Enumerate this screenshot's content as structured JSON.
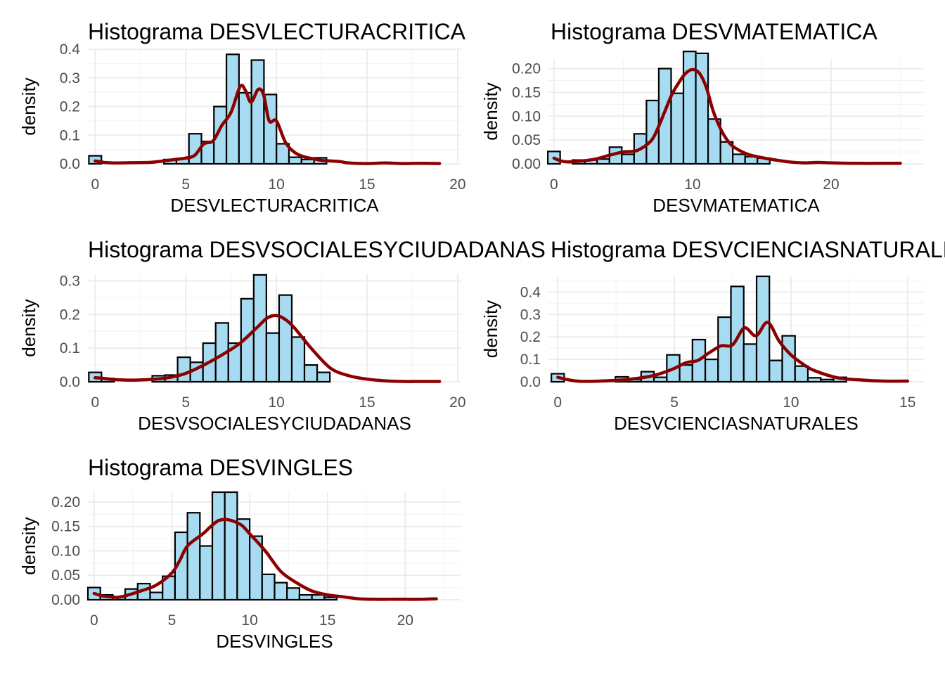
{
  "chart_data": [
    {
      "type": "bar",
      "title": "Histograma DESVLECTURACRITICA",
      "xlabel": "DESVLECTURACRITICA",
      "ylabel": "density",
      "xlim": [
        -0.4,
        20.2
      ],
      "ylim": [
        0,
        0.4
      ],
      "xticks": [
        0,
        5,
        10,
        15,
        20
      ],
      "xtick_labels": [
        "0",
        "5",
        "10",
        "15",
        "20"
      ],
      "yticks": [
        0,
        0.1,
        0.2,
        0.3,
        0.4
      ],
      "ytick_labels": [
        "0.0",
        "0.1",
        "0.2",
        "0.3",
        "0.4"
      ],
      "bin_width": 0.69,
      "bins": {
        "x": [
          0,
          0.69,
          1.38,
          2.07,
          2.76,
          3.45,
          4.14,
          4.83,
          5.52,
          6.21,
          6.9,
          7.59,
          8.28,
          8.97,
          9.66,
          10.35,
          11.04,
          11.73,
          12.42,
          13.11,
          13.8,
          14.49,
          15.18,
          15.87,
          16.56,
          17.25,
          17.94,
          18.63,
          19.32
        ],
        "y": [
          0.028,
          0,
          0,
          0,
          0,
          0,
          0.015,
          0.018,
          0.105,
          0.078,
          0.2,
          0.382,
          0.248,
          0.362,
          0.242,
          0.07,
          0.023,
          0.015,
          0.021,
          0,
          0,
          0,
          0,
          0,
          0,
          0,
          0,
          0,
          0
        ]
      },
      "density": {
        "x": [
          0,
          0.5,
          1,
          2,
          3,
          3.5,
          4,
          4.5,
          5,
          5.5,
          6,
          6.5,
          7,
          7.5,
          8,
          8.3,
          8.6,
          9,
          9.3,
          9.6,
          10,
          10.5,
          11,
          11.5,
          12,
          12.5,
          13,
          13.5,
          14,
          15,
          16,
          17,
          18,
          19
        ],
        "y": [
          0.01,
          0.005,
          0.003,
          0.004,
          0.005,
          0.008,
          0.012,
          0.016,
          0.02,
          0.03,
          0.07,
          0.08,
          0.135,
          0.18,
          0.27,
          0.255,
          0.215,
          0.26,
          0.24,
          0.15,
          0.15,
          0.075,
          0.04,
          0.025,
          0.018,
          0.012,
          0.01,
          0.008,
          0.003,
          0.001,
          0.003,
          0.001,
          0.002,
          0.001
        ]
      }
    },
    {
      "type": "bar",
      "title": "Histograma DESVMATEMATICA",
      "xlabel": "DESVMATEMATICA",
      "ylabel": "density",
      "xlim": [
        -0.4,
        26.7
      ],
      "ylim": [
        0,
        0.22
      ],
      "xticks": [
        0,
        10,
        20
      ],
      "xtick_labels": [
        "0",
        "10",
        "20"
      ],
      "yticks": [
        0,
        0.05,
        0.1,
        0.15,
        0.2
      ],
      "ytick_labels": [
        "0.00",
        "0.05",
        "0.10",
        "0.15",
        "0.20"
      ],
      "bin_width": 0.89,
      "bins": {
        "x": [
          0,
          0.89,
          1.78,
          2.67,
          3.56,
          4.45,
          5.34,
          6.23,
          7.12,
          8.01,
          8.9,
          9.79,
          10.68,
          11.57,
          12.46,
          13.35,
          14.24,
          15.13,
          16.02,
          16.91,
          17.8,
          18.69,
          19.58,
          20.47,
          21.36,
          22.25,
          23.14,
          24.03
        ],
        "y": [
          0.026,
          0,
          0.008,
          0.008,
          0.01,
          0.035,
          0.02,
          0.063,
          0.133,
          0.2,
          0.148,
          0.236,
          0.232,
          0.094,
          0.046,
          0.02,
          0.015,
          0.012,
          0,
          0,
          0,
          0,
          0,
          0,
          0,
          0,
          0,
          0
        ]
      },
      "density": {
        "x": [
          0,
          0.5,
          1,
          2,
          3,
          4,
          5,
          6,
          7,
          7.5,
          8,
          8.5,
          9,
          9.5,
          10,
          10.5,
          11,
          11.5,
          12,
          12.5,
          13,
          14,
          15,
          16,
          17,
          18,
          19,
          20,
          22,
          24,
          25
        ],
        "y": [
          0.012,
          0.006,
          0.004,
          0.006,
          0.01,
          0.018,
          0.025,
          0.028,
          0.048,
          0.075,
          0.11,
          0.145,
          0.17,
          0.19,
          0.198,
          0.19,
          0.16,
          0.11,
          0.075,
          0.05,
          0.035,
          0.02,
          0.013,
          0.008,
          0.004,
          0.002,
          0.003,
          0.002,
          0.001,
          0.001,
          0.001
        ]
      }
    },
    {
      "type": "bar",
      "title": "Histograma DESVSOCIALESYCIUDADANAS",
      "xlabel": "DESVSOCIALESYCIUDADANAS",
      "ylabel": "density",
      "xlim": [
        -0.4,
        20.2
      ],
      "ylim": [
        0,
        0.32
      ],
      "xticks": [
        0,
        5,
        10,
        15,
        20
      ],
      "xtick_labels": [
        "0",
        "5",
        "10",
        "15",
        "20"
      ],
      "yticks": [
        0,
        0.1,
        0.2,
        0.3
      ],
      "ytick_labels": [
        "0.0",
        "0.1",
        "0.2",
        "0.3"
      ],
      "bin_width": 0.7,
      "bins": {
        "x": [
          0,
          0.7,
          1.4,
          2.1,
          2.8,
          3.5,
          4.2,
          4.9,
          5.6,
          6.3,
          7.0,
          7.7,
          8.4,
          9.1,
          9.8,
          10.5,
          11.2,
          11.9,
          12.6,
          13.3,
          14.0,
          14.7,
          15.4,
          16.1,
          16.8,
          17.5,
          18.2,
          18.9
        ],
        "y": [
          0.028,
          0.01,
          0,
          0,
          0,
          0.018,
          0.02,
          0.073,
          0.058,
          0.115,
          0.175,
          0.115,
          0.247,
          0.318,
          0.145,
          0.258,
          0.133,
          0.05,
          0.028,
          0,
          0,
          0,
          0,
          0,
          0,
          0,
          0,
          0
        ]
      },
      "density": {
        "x": [
          0,
          0.5,
          1,
          2,
          3,
          4,
          5,
          6,
          7,
          8,
          9,
          9.5,
          10,
          10.5,
          11,
          12,
          13,
          14,
          15,
          16,
          17,
          18,
          19
        ],
        "y": [
          0.012,
          0.01,
          0.007,
          0.005,
          0.007,
          0.012,
          0.025,
          0.05,
          0.08,
          0.115,
          0.165,
          0.19,
          0.197,
          0.185,
          0.16,
          0.095,
          0.04,
          0.018,
          0.008,
          0.003,
          0.001,
          0.001,
          0.001
        ]
      }
    },
    {
      "type": "bar",
      "title": "Histograma DESVCIENCIASNATURALES",
      "xlabel": "DESVCIENCIASNATURALES",
      "ylabel": "density",
      "xlim": [
        -0.4,
        15.7
      ],
      "ylim": [
        0,
        0.47
      ],
      "xticks": [
        0,
        5,
        10,
        15
      ],
      "xtick_labels": [
        "0",
        "5",
        "10",
        "15"
      ],
      "yticks": [
        0,
        0.1,
        0.2,
        0.3,
        0.4
      ],
      "ytick_labels": [
        "0.0",
        "0.1",
        "0.2",
        "0.3",
        "0.4"
      ],
      "bin_width": 0.55,
      "bins": {
        "x": [
          0,
          0.55,
          1.1,
          1.65,
          2.2,
          2.75,
          3.3,
          3.85,
          4.4,
          4.95,
          5.5,
          6.05,
          6.6,
          7.15,
          7.7,
          8.25,
          8.8,
          9.35,
          9.9,
          10.45,
          11.0,
          11.55,
          12.1,
          12.65,
          13.2,
          13.75,
          14.3,
          14.85
        ],
        "y": [
          0.036,
          0,
          0,
          0,
          0,
          0.022,
          0.01,
          0.045,
          0.02,
          0.12,
          0.075,
          0.188,
          0.1,
          0.288,
          0.425,
          0.168,
          0.47,
          0.095,
          0.205,
          0.07,
          0.018,
          0.01,
          0.02,
          0,
          0,
          0,
          0,
          0
        ]
      },
      "density": {
        "x": [
          0,
          0.5,
          1,
          2,
          3,
          4,
          4.5,
          5,
          5.5,
          6,
          6.5,
          7,
          7.5,
          8,
          8.5,
          9,
          9.5,
          10,
          10.5,
          11,
          12,
          13,
          14,
          15
        ],
        "y": [
          0.02,
          0.008,
          0.002,
          0.004,
          0.01,
          0.025,
          0.04,
          0.06,
          0.085,
          0.095,
          0.13,
          0.16,
          0.165,
          0.24,
          0.205,
          0.265,
          0.18,
          0.12,
          0.08,
          0.05,
          0.018,
          0.008,
          0.003,
          0.003
        ]
      }
    },
    {
      "type": "bar",
      "title": "Histograma DESVINGLES",
      "xlabel": "DESVINGLES",
      "ylabel": "density",
      "xlim": [
        -0.4,
        23.6
      ],
      "ylim": [
        0,
        0.22
      ],
      "xticks": [
        0,
        5,
        10,
        15,
        20
      ],
      "xtick_labels": [
        "0",
        "5",
        "10",
        "15",
        "20"
      ],
      "yticks": [
        0,
        0.05,
        0.1,
        0.15,
        0.2
      ],
      "ytick_labels": [
        "0.00",
        "0.05",
        "0.10",
        "0.15",
        "0.20"
      ],
      "bin_width": 0.8,
      "bins": {
        "x": [
          0,
          0.8,
          1.6,
          2.4,
          3.2,
          4.0,
          4.8,
          5.6,
          6.4,
          7.2,
          8.0,
          8.8,
          9.6,
          10.4,
          11.2,
          12.0,
          12.8,
          13.6,
          14.4,
          15.2,
          16.0,
          16.8,
          17.6,
          18.4,
          19.2,
          20.0,
          20.8,
          21.6
        ],
        "y": [
          0.025,
          0.01,
          0.005,
          0.022,
          0.033,
          0.015,
          0.048,
          0.138,
          0.178,
          0.11,
          0.22,
          0.22,
          0.165,
          0.13,
          0.052,
          0.035,
          0.024,
          0.01,
          0.01,
          0.005,
          0,
          0,
          0,
          0,
          0,
          0,
          0,
          0
        ]
      },
      "density": {
        "x": [
          0,
          0.5,
          1,
          1.5,
          2,
          3,
          4,
          5,
          5.5,
          6,
          7,
          7.5,
          8,
          8.5,
          9,
          9.5,
          10,
          11,
          12,
          13,
          14,
          15,
          16,
          17,
          18,
          19,
          20,
          21,
          22
        ],
        "y": [
          0.013,
          0.008,
          0.006,
          0.005,
          0.008,
          0.018,
          0.03,
          0.055,
          0.08,
          0.11,
          0.135,
          0.15,
          0.162,
          0.164,
          0.16,
          0.152,
          0.135,
          0.1,
          0.058,
          0.035,
          0.018,
          0.01,
          0.006,
          0.002,
          0.001,
          0.001,
          0.001,
          0.001,
          0.002
        ]
      }
    }
  ]
}
